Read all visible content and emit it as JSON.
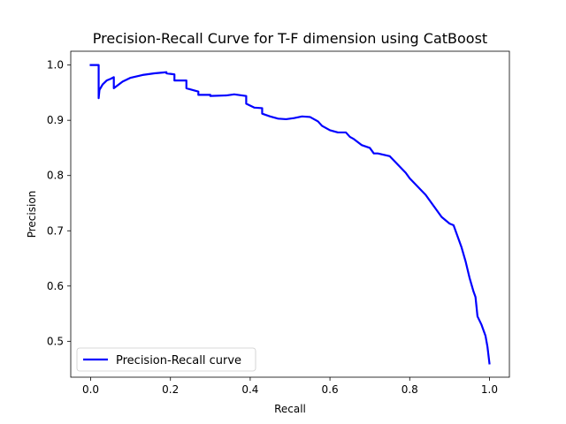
{
  "chart_data": {
    "type": "line",
    "title": "Precision-Recall Curve for T-F dimension using CatBoost",
    "xlabel": "Recall",
    "ylabel": "Precision",
    "xlim": [
      -0.05,
      1.05
    ],
    "ylim": [
      0.435,
      1.025
    ],
    "xticks": [
      0.0,
      0.2,
      0.4,
      0.6,
      0.8,
      1.0
    ],
    "xtick_labels": [
      "0.0",
      "0.2",
      "0.4",
      "0.6",
      "0.8",
      "1.0"
    ],
    "yticks": [
      0.5,
      0.6,
      0.7,
      0.8,
      0.9,
      1.0
    ],
    "ytick_labels": [
      "0.5",
      "0.6",
      "0.7",
      "0.8",
      "0.9",
      "1.0"
    ],
    "grid": false,
    "legend": {
      "position": "lower-left",
      "entries": [
        "Precision-Recall curve"
      ]
    },
    "series": [
      {
        "name": "Precision-Recall curve",
        "color": "#0000ff",
        "x": [
          0.0,
          0.02,
          0.02,
          0.022,
          0.03,
          0.04,
          0.05,
          0.058,
          0.058,
          0.08,
          0.1,
          0.13,
          0.16,
          0.19,
          0.19,
          0.21,
          0.21,
          0.24,
          0.24,
          0.27,
          0.27,
          0.3,
          0.3,
          0.34,
          0.36,
          0.37,
          0.39,
          0.39,
          0.41,
          0.43,
          0.43,
          0.45,
          0.47,
          0.49,
          0.51,
          0.53,
          0.55,
          0.57,
          0.58,
          0.6,
          0.62,
          0.64,
          0.65,
          0.66,
          0.68,
          0.7,
          0.71,
          0.72,
          0.75,
          0.77,
          0.79,
          0.8,
          0.82,
          0.84,
          0.86,
          0.88,
          0.9,
          0.91,
          0.92,
          0.93,
          0.94,
          0.95,
          0.96,
          0.965,
          0.97,
          0.98,
          0.99,
          0.995,
          1.0
        ],
        "y": [
          1.0,
          1.0,
          0.94,
          0.955,
          0.965,
          0.972,
          0.975,
          0.978,
          0.958,
          0.97,
          0.977,
          0.982,
          0.985,
          0.987,
          0.985,
          0.983,
          0.972,
          0.972,
          0.958,
          0.952,
          0.946,
          0.946,
          0.944,
          0.945,
          0.947,
          0.946,
          0.944,
          0.93,
          0.923,
          0.922,
          0.912,
          0.907,
          0.903,
          0.902,
          0.904,
          0.907,
          0.906,
          0.898,
          0.89,
          0.882,
          0.878,
          0.878,
          0.87,
          0.866,
          0.855,
          0.85,
          0.84,
          0.84,
          0.835,
          0.82,
          0.805,
          0.795,
          0.78,
          0.765,
          0.745,
          0.725,
          0.713,
          0.71,
          0.69,
          0.67,
          0.645,
          0.615,
          0.59,
          0.58,
          0.545,
          0.53,
          0.51,
          0.49,
          0.46
        ]
      }
    ]
  }
}
